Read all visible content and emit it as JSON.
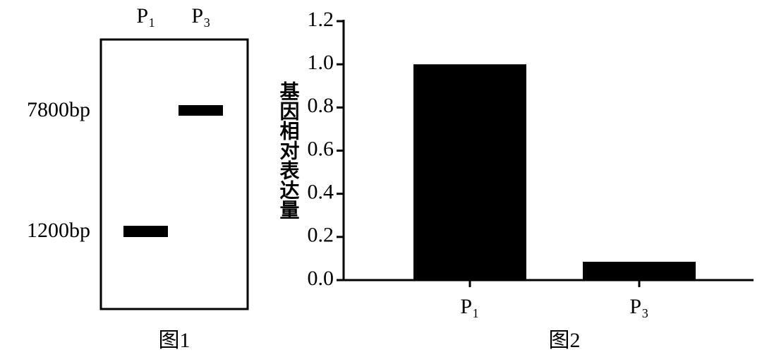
{
  "gel": {
    "lanes": [
      "P₁",
      "P₃"
    ],
    "markers": [
      "7800bp",
      "1200bp"
    ],
    "caption": "图1"
  },
  "chart_data": {
    "type": "bar",
    "caption": "图2",
    "y_label": "基因相对表达量",
    "categories": [
      "P₁",
      "P₃"
    ],
    "values": [
      1.0,
      0.085
    ],
    "color": "#000000",
    "ylim": [
      0,
      1.2
    ],
    "yticks": [
      {
        "value": 0,
        "label": "0.0"
      },
      0.2,
      0.4,
      0.6,
      0.8,
      {
        "value": 1,
        "label": "1.0"
      },
      1.2
    ]
  }
}
